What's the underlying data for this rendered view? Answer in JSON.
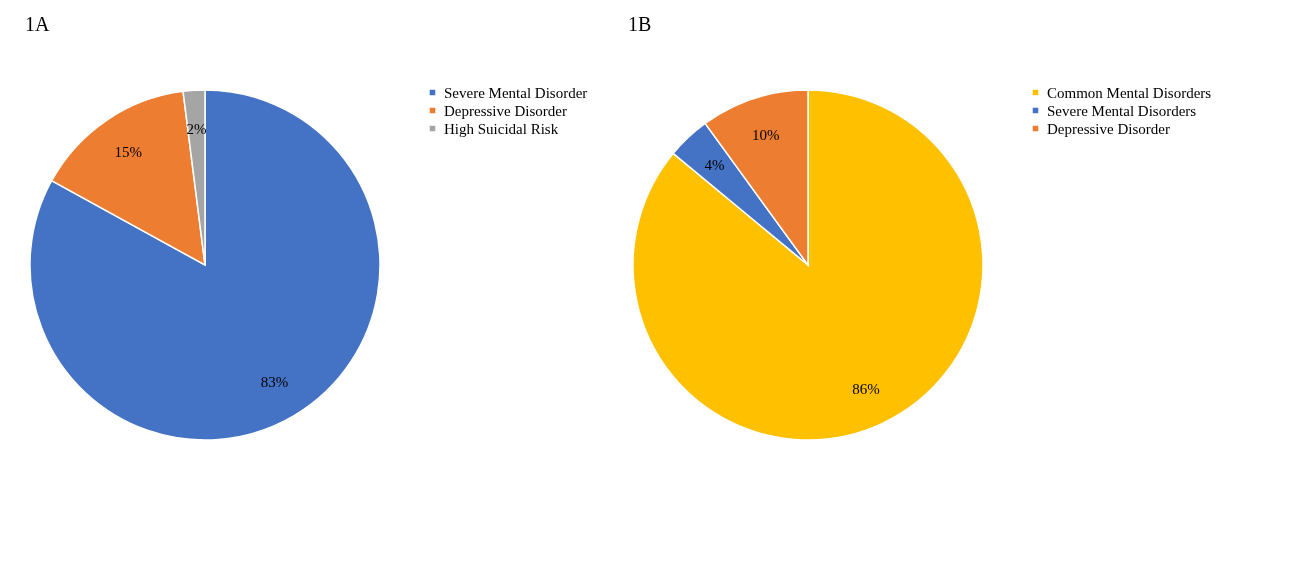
{
  "chart_data": [
    {
      "type": "pie",
      "title": "1A",
      "categories": [
        "Severe Mental Disorder",
        "Depressive Disorder",
        "High Suicidal Risk"
      ],
      "values": [
        83,
        15,
        2
      ],
      "colors": [
        "#4472c4",
        "#ed7d31",
        "#a5a5a5"
      ],
      "value_labels": [
        "83%",
        "15%",
        "2%"
      ],
      "legend": "right"
    },
    {
      "type": "pie",
      "title": "1B",
      "categories": [
        "Common Mental Disorders",
        "Severe Mental Disorders",
        "Depressive Disorder"
      ],
      "values": [
        86,
        4,
        10
      ],
      "colors": [
        "#ffc000",
        "#4472c4",
        "#ed7d31"
      ],
      "value_labels": [
        "86%",
        "4%",
        "10%"
      ],
      "legend": "right"
    }
  ]
}
